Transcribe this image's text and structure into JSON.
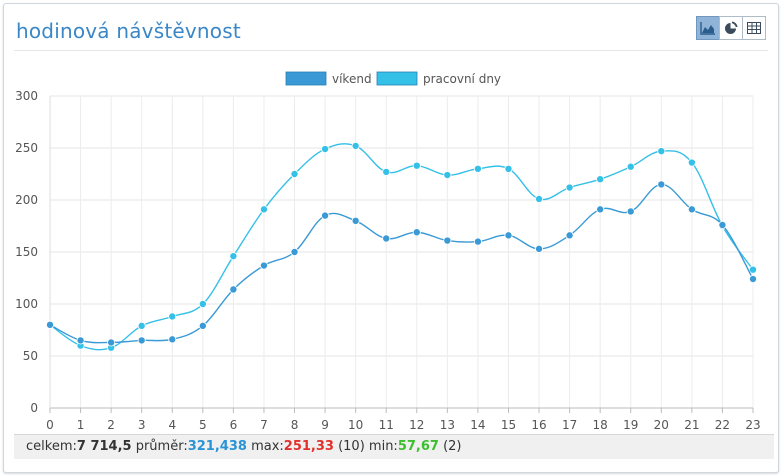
{
  "title": "hodinová návštěvnost",
  "toolbar": {
    "buttons": [
      {
        "icon": "area-chart-icon",
        "active": true
      },
      {
        "icon": "pie-chart-icon",
        "active": false
      },
      {
        "icon": "table-icon",
        "active": false
      }
    ]
  },
  "colors": {
    "title": "#3a87c8",
    "weekend": "#3a9ad6",
    "workdays": "#35c0e8"
  },
  "chart_data": {
    "type": "line",
    "x": [
      0,
      1,
      2,
      3,
      4,
      5,
      6,
      7,
      8,
      9,
      10,
      11,
      12,
      13,
      14,
      15,
      16,
      17,
      18,
      19,
      20,
      21,
      22,
      23
    ],
    "xticks": [
      "0",
      "1",
      "2",
      "3",
      "4",
      "5",
      "6",
      "7",
      "8",
      "9",
      "10",
      "11",
      "12",
      "13",
      "14",
      "15",
      "16",
      "17",
      "18",
      "19",
      "20",
      "21",
      "22",
      "23"
    ],
    "yticks": [
      "0",
      "50",
      "100",
      "150",
      "200",
      "250",
      "300"
    ],
    "ylim": [
      0,
      300
    ],
    "grid": true,
    "legend_position": "top-center",
    "series": [
      {
        "name": "víkend",
        "color": "#3a9ad6",
        "values": [
          80,
          65,
          63,
          65,
          66,
          79,
          114,
          137,
          150,
          185,
          180,
          163,
          169,
          161,
          160,
          166,
          153,
          166,
          191,
          189,
          215,
          191,
          176,
          124
        ]
      },
      {
        "name": "pracovní dny",
        "color": "#35c0e8",
        "values": [
          80,
          60,
          58,
          79,
          88,
          100,
          146,
          191,
          225,
          249,
          252,
          227,
          233,
          224,
          230,
          230,
          201,
          212,
          220,
          232,
          247,
          236,
          175,
          133
        ]
      }
    ]
  },
  "summary": {
    "total_label": "celkem:",
    "total_value": "7 714,5",
    "avg_label": " průměr:",
    "avg_value": "321,438",
    "max_label": " max:",
    "max_value": "251,33",
    "max_at": " (10)",
    "min_label": " min:",
    "min_value": "57,67",
    "min_at": " (2)"
  }
}
